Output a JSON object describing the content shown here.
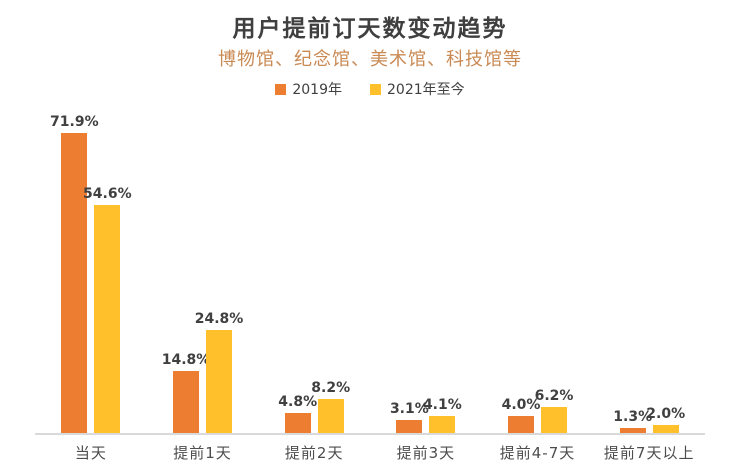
{
  "chart_data": {
    "type": "bar",
    "title": "用户提前订天数变动趋势",
    "subtitle": "博物馆、纪念馆、美术馆、科技馆等",
    "categories": [
      "当天",
      "提前1天",
      "提前2天",
      "提前3天",
      "提前4-7天",
      "提前7天以上"
    ],
    "series": [
      {
        "name": "2019年",
        "color": "#ED7D31",
        "values": [
          71.9,
          14.8,
          4.8,
          3.1,
          4.0,
          1.3
        ]
      },
      {
        "name": "2021年至今",
        "color": "#FFC02B",
        "values": [
          54.6,
          24.8,
          8.2,
          4.1,
          6.2,
          2.0
        ]
      }
    ],
    "value_suffix": "%",
    "value_labels_shown": true,
    "ylim": [
      0,
      75
    ],
    "grid": false,
    "legend_position": "top",
    "axis_line_color": "#D9D9D9",
    "title_color": "#3F3F3F",
    "subtitle_color": "#C98A54",
    "label_color": "#404040"
  }
}
